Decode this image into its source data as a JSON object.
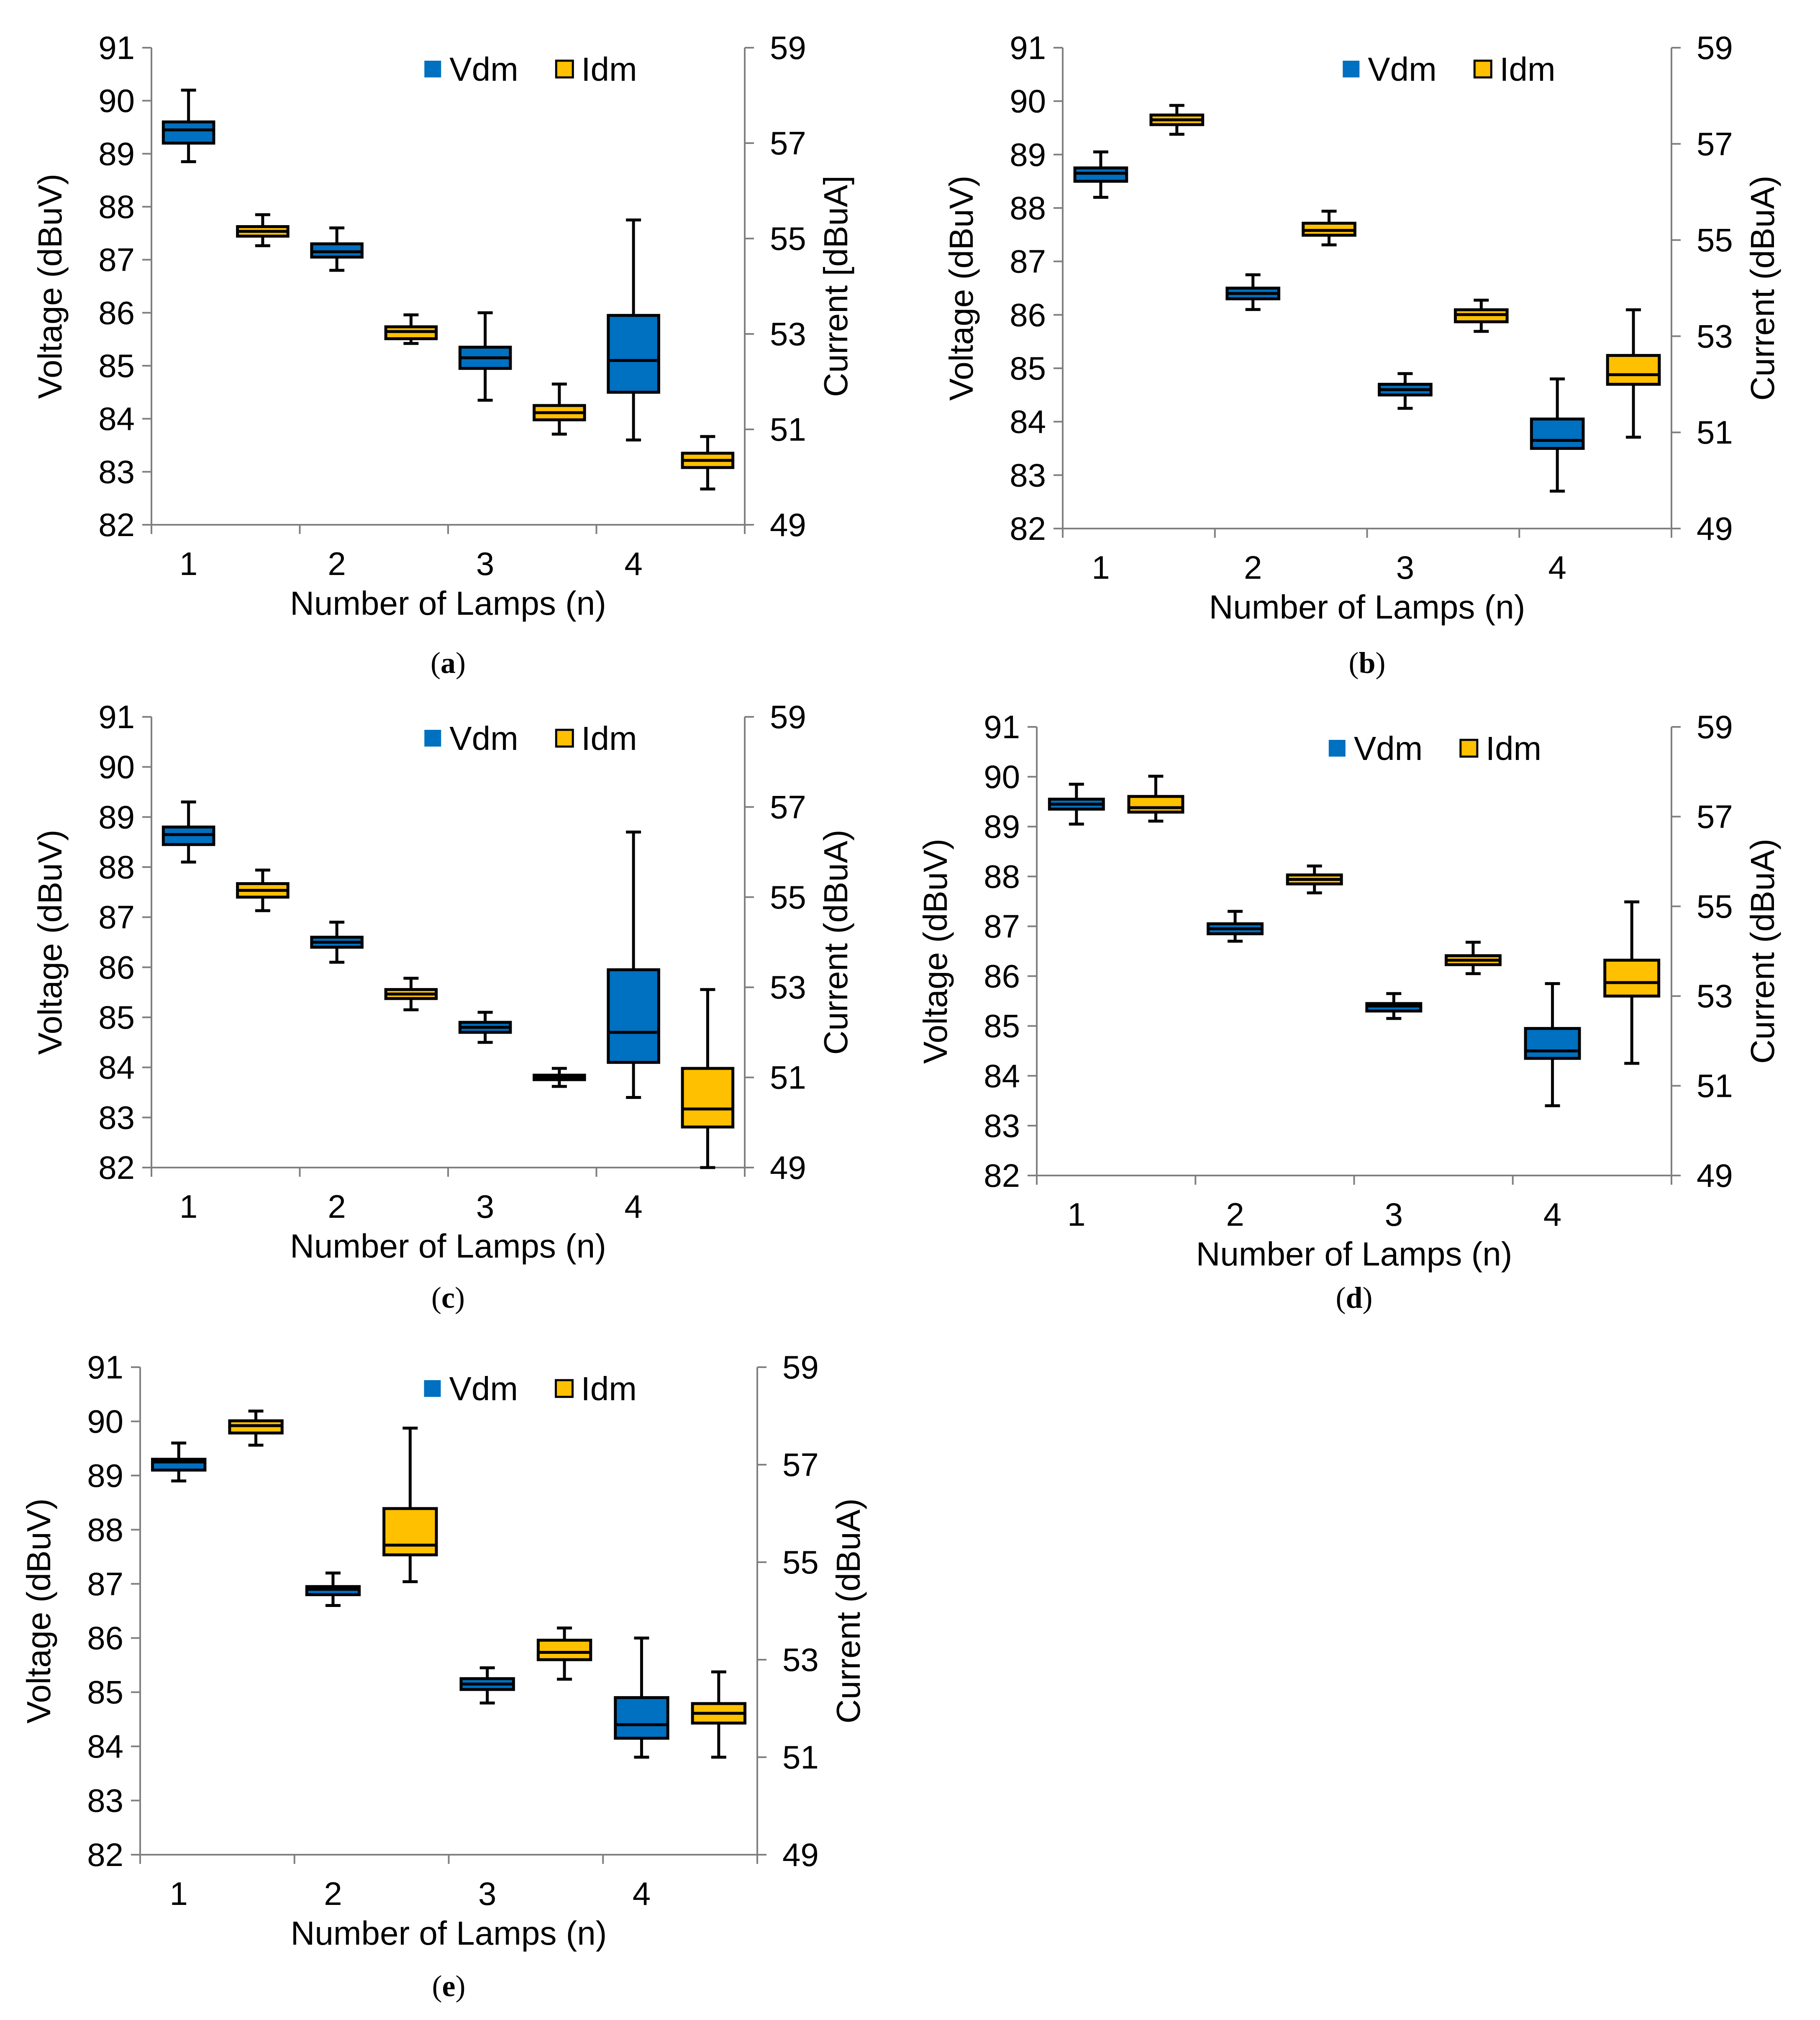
{
  "figure": {
    "legend": {
      "vdm": "Vdm",
      "idm": "Idm"
    },
    "colors": {
      "vdm": "#0070C0",
      "idm": "#FFC000",
      "outline": "#000000",
      "axis": "#7f7f7f"
    }
  },
  "chart_data": [
    {
      "type": "box",
      "caption": "a",
      "xlabel": "Number of Lamps (n)",
      "ylabel": "Voltage (dBuV)",
      "y2label": "Current [dBuA]",
      "categories": [
        "1",
        "2",
        "3",
        "4"
      ],
      "ylim": [
        82,
        91
      ],
      "y2lim": [
        49,
        59
      ],
      "yticks": [
        "82",
        "83",
        "84",
        "85",
        "86",
        "87",
        "88",
        "89",
        "90",
        "91"
      ],
      "y2ticks": [
        "49",
        "51",
        "53",
        "55",
        "57",
        "59"
      ],
      "series": [
        {
          "name": "Vdm",
          "axis": "left",
          "boxes": [
            {
              "min": 88.85,
              "q1": 89.2,
              "median": 89.45,
              "q3": 89.6,
              "max": 90.2
            },
            {
              "min": 86.8,
              "q1": 87.05,
              "median": 87.15,
              "q3": 87.3,
              "max": 87.6
            },
            {
              "min": 84.35,
              "q1": 84.95,
              "median": 85.15,
              "q3": 85.35,
              "max": 86.0
            },
            {
              "min": 83.6,
              "q1": 84.5,
              "median": 85.1,
              "q3": 85.95,
              "max": 87.75
            }
          ]
        },
        {
          "name": "Idm",
          "axis": "right",
          "boxes": [
            {
              "min": 54.85,
              "q1": 55.05,
              "median": 55.15,
              "q3": 55.25,
              "max": 55.5
            },
            {
              "min": 52.8,
              "q1": 52.9,
              "median": 53.05,
              "q3": 53.15,
              "max": 53.4
            },
            {
              "min": 50.9,
              "q1": 51.2,
              "median": 51.35,
              "q3": 51.5,
              "max": 51.95
            },
            {
              "min": 49.75,
              "q1": 50.2,
              "median": 50.35,
              "q3": 50.5,
              "max": 50.85
            }
          ]
        }
      ]
    },
    {
      "type": "box",
      "caption": "b",
      "xlabel": "Number of Lamps (n)",
      "ylabel": "Voltage (dBuV)",
      "y2label": "Current (dBuA)",
      "categories": [
        "1",
        "2",
        "3",
        "4"
      ],
      "ylim": [
        82,
        91
      ],
      "y2lim": [
        49,
        59
      ],
      "yticks": [
        "82",
        "83",
        "84",
        "85",
        "86",
        "87",
        "88",
        "89",
        "90",
        "91"
      ],
      "y2ticks": [
        "49",
        "51",
        "53",
        "55",
        "57",
        "59"
      ],
      "series": [
        {
          "name": "Vdm",
          "axis": "left",
          "boxes": [
            {
              "min": 88.2,
              "q1": 88.5,
              "median": 88.65,
              "q3": 88.75,
              "max": 89.05
            },
            {
              "min": 86.1,
              "q1": 86.3,
              "median": 86.4,
              "q3": 86.5,
              "max": 86.75
            },
            {
              "min": 84.25,
              "q1": 84.5,
              "median": 84.6,
              "q3": 84.7,
              "max": 84.9
            },
            {
              "min": 82.7,
              "q1": 83.5,
              "median": 83.65,
              "q3": 84.05,
              "max": 84.8
            }
          ]
        },
        {
          "name": "Idm",
          "axis": "right",
          "boxes": [
            {
              "min": 57.2,
              "q1": 57.4,
              "median": 57.5,
              "q3": 57.6,
              "max": 57.8
            },
            {
              "min": 54.9,
              "q1": 55.1,
              "median": 55.2,
              "q3": 55.35,
              "max": 55.6
            },
            {
              "min": 53.1,
              "q1": 53.3,
              "median": 53.45,
              "q3": 53.55,
              "max": 53.75
            },
            {
              "min": 50.9,
              "q1": 52.0,
              "median": 52.2,
              "q3": 52.6,
              "max": 53.55
            }
          ]
        }
      ]
    },
    {
      "type": "box",
      "caption": "c",
      "xlabel": "Number of Lamps (n)",
      "ylabel": "Voltage (dBuV)",
      "y2label": "Current (dBuA)",
      "categories": [
        "1",
        "2",
        "3",
        "4"
      ],
      "ylim": [
        82,
        91
      ],
      "y2lim": [
        49,
        59
      ],
      "yticks": [
        "82",
        "83",
        "84",
        "85",
        "86",
        "87",
        "88",
        "89",
        "90",
        "91"
      ],
      "y2ticks": [
        "49",
        "51",
        "53",
        "55",
        "57",
        "59"
      ],
      "series": [
        {
          "name": "Vdm",
          "axis": "left",
          "boxes": [
            {
              "min": 88.1,
              "q1": 88.45,
              "median": 88.65,
              "q3": 88.8,
              "max": 89.3
            },
            {
              "min": 86.1,
              "q1": 86.4,
              "median": 86.5,
              "q3": 86.6,
              "max": 86.9
            },
            {
              "min": 84.5,
              "q1": 84.7,
              "median": 84.8,
              "q3": 84.9,
              "max": 85.1
            },
            {
              "min": 83.4,
              "q1": 84.1,
              "median": 84.7,
              "q3": 85.95,
              "max": 88.7
            }
          ]
        },
        {
          "name": "Idm",
          "axis": "right",
          "boxes": [
            {
              "min": 54.7,
              "q1": 55.0,
              "median": 55.15,
              "q3": 55.3,
              "max": 55.6
            },
            {
              "min": 52.5,
              "q1": 52.75,
              "median": 52.85,
              "q3": 52.95,
              "max": 53.2
            },
            {
              "min": 50.8,
              "q1": 50.95,
              "median": 51.0,
              "q3": 51.05,
              "max": 51.2
            },
            {
              "min": 49.0,
              "q1": 49.9,
              "median": 50.3,
              "q3": 51.2,
              "max": 52.95
            }
          ]
        }
      ]
    },
    {
      "type": "box",
      "caption": "d",
      "xlabel": "Number of Lamps (n)",
      "ylabel": "Voltage (dBuV)",
      "y2label": "Current (dBuA)",
      "categories": [
        "1",
        "2",
        "3",
        "4"
      ],
      "ylim": [
        82,
        91
      ],
      "y2lim": [
        49,
        59
      ],
      "yticks": [
        "82",
        "83",
        "84",
        "85",
        "86",
        "87",
        "88",
        "89",
        "90",
        "91"
      ],
      "y2ticks": [
        "49",
        "51",
        "53",
        "55",
        "57",
        "59"
      ],
      "series": [
        {
          "name": "Vdm",
          "axis": "left",
          "boxes": [
            {
              "min": 89.05,
              "q1": 89.35,
              "median": 89.45,
              "q3": 89.55,
              "max": 89.85
            },
            {
              "min": 86.7,
              "q1": 86.85,
              "median": 86.95,
              "q3": 87.05,
              "max": 87.3
            },
            {
              "min": 85.15,
              "q1": 85.3,
              "median": 85.4,
              "q3": 85.45,
              "max": 85.65
            },
            {
              "min": 83.4,
              "q1": 84.35,
              "median": 84.5,
              "q3": 84.95,
              "max": 85.85
            }
          ]
        },
        {
          "name": "Idm",
          "axis": "right",
          "boxes": [
            {
              "min": 56.9,
              "q1": 57.1,
              "median": 57.2,
              "q3": 57.45,
              "max": 57.9
            },
            {
              "min": 55.3,
              "q1": 55.5,
              "median": 55.6,
              "q3": 55.7,
              "max": 55.9
            },
            {
              "min": 53.5,
              "q1": 53.7,
              "median": 53.8,
              "q3": 53.9,
              "max": 54.2
            },
            {
              "min": 51.5,
              "q1": 53.0,
              "median": 53.3,
              "q3": 53.8,
              "max": 55.1
            }
          ]
        }
      ]
    },
    {
      "type": "box",
      "caption": "e",
      "xlabel": "Number of Lamps (n)",
      "ylabel": "Voltage (dBuV)",
      "y2label": "Current (dBuA)",
      "categories": [
        "1",
        "2",
        "3",
        "4"
      ],
      "ylim": [
        82,
        91
      ],
      "y2lim": [
        49,
        59
      ],
      "yticks": [
        "82",
        "83",
        "84",
        "85",
        "86",
        "87",
        "88",
        "89",
        "90",
        "91"
      ],
      "y2ticks": [
        "49",
        "51",
        "53",
        "55",
        "57",
        "59"
      ],
      "series": [
        {
          "name": "Vdm",
          "axis": "left",
          "boxes": [
            {
              "min": 88.9,
              "q1": 89.1,
              "median": 89.25,
              "q3": 89.3,
              "max": 89.6
            },
            {
              "min": 86.6,
              "q1": 86.8,
              "median": 86.9,
              "q3": 86.95,
              "max": 87.2
            },
            {
              "min": 84.8,
              "q1": 85.05,
              "median": 85.15,
              "q3": 85.25,
              "max": 85.45
            },
            {
              "min": 83.8,
              "q1": 84.15,
              "median": 84.4,
              "q3": 84.9,
              "max": 86.0
            }
          ]
        },
        {
          "name": "Idm",
          "axis": "right",
          "boxes": [
            {
              "min": 57.4,
              "q1": 57.65,
              "median": 57.8,
              "q3": 57.9,
              "max": 58.1
            },
            {
              "min": 54.6,
              "q1": 55.15,
              "median": 55.35,
              "q3": 56.1,
              "max": 57.75
            },
            {
              "min": 52.6,
              "q1": 53.0,
              "median": 53.15,
              "q3": 53.4,
              "max": 53.65
            },
            {
              "min": 51.0,
              "q1": 51.7,
              "median": 51.9,
              "q3": 52.1,
              "max": 52.75
            }
          ]
        }
      ]
    }
  ]
}
